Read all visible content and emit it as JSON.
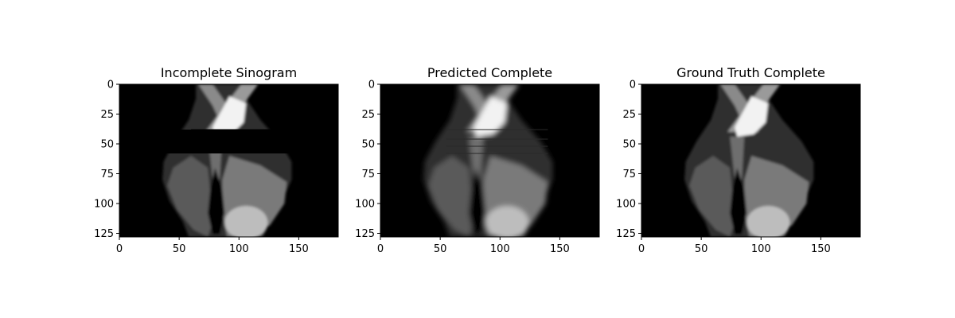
{
  "chart_data": [
    {
      "type": "heatmap",
      "title": "Incomplete Sinogram",
      "colormap": "gray",
      "image_shape": [
        128,
        183
      ],
      "masked_rows": [
        38,
        58
      ],
      "xlabel": "",
      "ylabel": "",
      "xlim": [
        0,
        183
      ],
      "ylim": [
        128,
        0
      ],
      "xticks": [
        0,
        50,
        100,
        150
      ],
      "yticks": [
        0,
        25,
        50,
        75,
        100,
        125
      ]
    },
    {
      "type": "heatmap",
      "title": "Predicted Complete",
      "colormap": "gray",
      "image_shape": [
        128,
        183
      ],
      "xlabel": "",
      "ylabel": "",
      "xlim": [
        0,
        183
      ],
      "ylim": [
        128,
        0
      ],
      "xticks": [
        0,
        50,
        100,
        150
      ],
      "yticks": [
        0,
        25,
        50,
        75,
        100,
        125
      ]
    },
    {
      "type": "heatmap",
      "title": "Ground Truth Complete",
      "colormap": "gray",
      "image_shape": [
        128,
        183
      ],
      "xlabel": "",
      "ylabel": "",
      "xlim": [
        0,
        183
      ],
      "ylim": [
        128,
        0
      ],
      "xticks": [
        0,
        50,
        100,
        150
      ],
      "yticks": [
        0,
        25,
        50,
        75,
        100,
        125
      ]
    }
  ]
}
